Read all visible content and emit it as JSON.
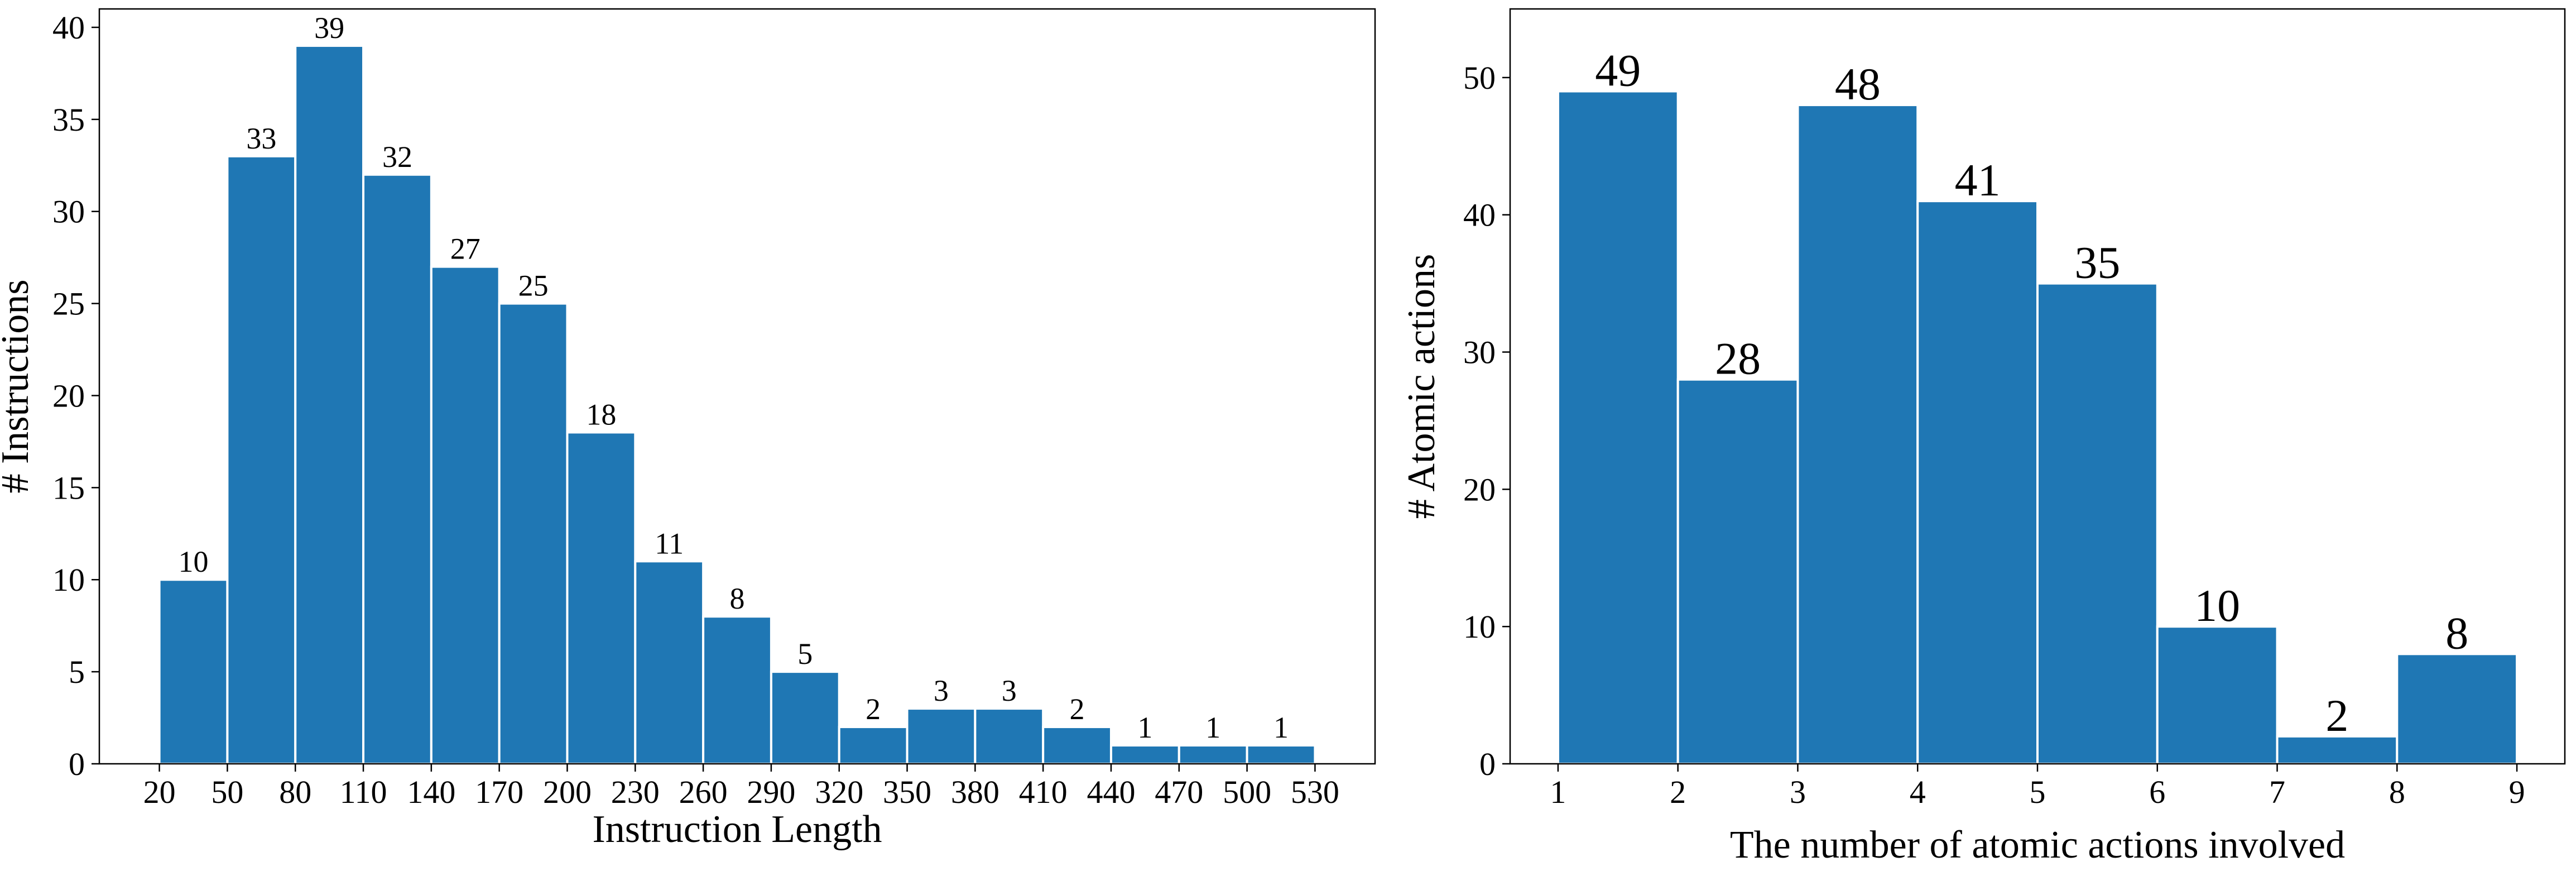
{
  "colors": {
    "bar": "#1f77b4",
    "bar_edge": "#ffffff",
    "axis": "#000000"
  },
  "chart_data": [
    {
      "type": "bar",
      "xlabel": "Instruction Length",
      "ylabel": "# Instructions",
      "bin_edges": [
        20,
        50,
        80,
        110,
        140,
        170,
        200,
        230,
        260,
        290,
        320,
        350,
        380,
        410,
        440,
        470,
        500,
        530
      ],
      "values": [
        10,
        33,
        39,
        32,
        27,
        25,
        18,
        11,
        8,
        5,
        2,
        3,
        3,
        2,
        1,
        1,
        1
      ],
      "xticks": [
        20,
        50,
        80,
        110,
        140,
        170,
        200,
        230,
        260,
        290,
        320,
        350,
        380,
        410,
        440,
        470,
        500,
        530
      ],
      "yticks": [
        0,
        5,
        10,
        15,
        20,
        25,
        30,
        35,
        40
      ],
      "xlim": [
        -6.5,
        556.5
      ],
      "ylim": [
        0,
        41
      ],
      "grid": false
    },
    {
      "type": "bar",
      "xlabel": "The number of atomic actions involved",
      "ylabel": "# Atomic actions",
      "bin_edges": [
        1,
        2,
        3,
        4,
        5,
        6,
        7,
        8,
        9
      ],
      "values": [
        49,
        28,
        48,
        41,
        35,
        10,
        2,
        8
      ],
      "xticks": [
        1,
        2,
        3,
        4,
        5,
        6,
        7,
        8,
        9
      ],
      "yticks": [
        0,
        10,
        20,
        30,
        40,
        50
      ],
      "xlim": [
        0.6,
        9.4
      ],
      "ylim": [
        0,
        55
      ],
      "grid": false
    }
  ]
}
